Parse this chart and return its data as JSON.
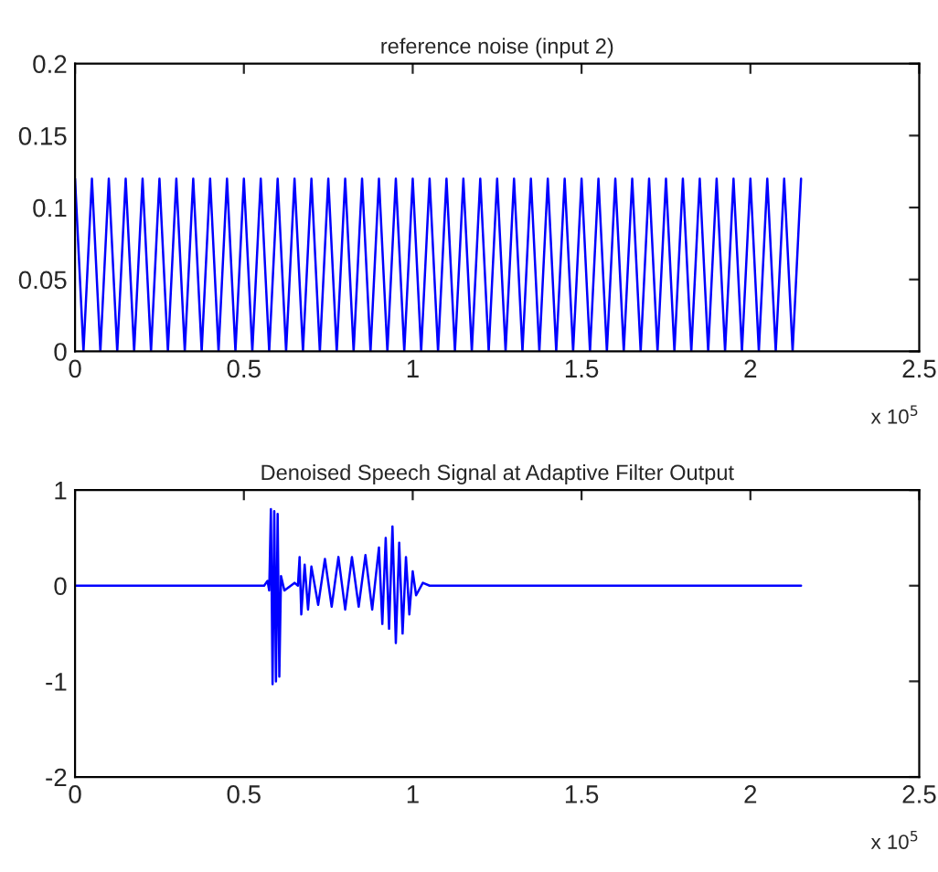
{
  "chart_data": [
    {
      "type": "line",
      "title": "reference noise (input 2)",
      "annotations": [
        "x 10$^{5}$"
      ],
      "xlim": [
        0,
        2.5
      ],
      "xticks": [
        0,
        0.5,
        1,
        1.5,
        2,
        2.5
      ],
      "ylim": [
        0,
        0.2
      ],
      "yticks": [
        0,
        0.05,
        0.1,
        0.15,
        0.2
      ],
      "grid": false,
      "series": [
        {
          "color": "#0000ff",
          "x": [
            0,
            0.025,
            0.05,
            0.075,
            0.1,
            0.125,
            0.15,
            0.175,
            0.2,
            0.225,
            0.25,
            0.275,
            0.3,
            0.325,
            0.35,
            0.375,
            0.4,
            0.425,
            0.45,
            0.475,
            0.5,
            0.525,
            0.55,
            0.575,
            0.6,
            0.625,
            0.65,
            0.675,
            0.7,
            0.725,
            0.75,
            0.775,
            0.8,
            0.825,
            0.85,
            0.875,
            0.9,
            0.925,
            0.95,
            0.975,
            1,
            1.025,
            1.05,
            1.075,
            1.1,
            1.125,
            1.15,
            1.175,
            1.2,
            1.225,
            1.25,
            1.275,
            1.3,
            1.325,
            1.35,
            1.375,
            1.4,
            1.425,
            1.45,
            1.475,
            1.5,
            1.525,
            1.55,
            1.575,
            1.6,
            1.625,
            1.65,
            1.675,
            1.7,
            1.725,
            1.75,
            1.775,
            1.8,
            1.825,
            1.85,
            1.875,
            1.9,
            1.925,
            1.95,
            1.975,
            2,
            2.025,
            2.05,
            2.075,
            2.1,
            2.125,
            2.15
          ],
          "values": [
            0.12,
            0,
            0.12,
            0,
            0.12,
            0,
            0.12,
            0,
            0.12,
            0,
            0.12,
            0,
            0.12,
            0,
            0.12,
            0,
            0.12,
            0,
            0.12,
            0,
            0.12,
            0,
            0.12,
            0,
            0.12,
            0,
            0.12,
            0,
            0.12,
            0,
            0.12,
            0,
            0.12,
            0,
            0.12,
            0,
            0.12,
            0,
            0.12,
            0,
            0.12,
            0,
            0.12,
            0,
            0.12,
            0,
            0.12,
            0,
            0.12,
            0,
            0.12,
            0,
            0.12,
            0,
            0.12,
            0,
            0.12,
            0,
            0.12,
            0,
            0.12,
            0,
            0.12,
            0,
            0.12,
            0,
            0.12,
            0,
            0.12,
            0,
            0.12,
            0,
            0.12,
            0,
            0.12,
            0,
            0.12,
            0,
            0.12,
            0,
            0.12,
            0,
            0.12,
            0,
            0.12,
            0,
            0.12
          ]
        }
      ]
    },
    {
      "type": "line",
      "title": "Denoised Speech Signal at Adaptive Filter Output",
      "annotations": [
        "x 10$^{5}$"
      ],
      "xlim": [
        0,
        2.5
      ],
      "xticks": [
        0,
        0.5,
        1,
        1.5,
        2,
        2.5
      ],
      "ylim": [
        -2,
        1
      ],
      "yticks": [
        -2,
        -1,
        0,
        1
      ],
      "grid": false,
      "series": [
        {
          "color": "#0000ff",
          "x": [
            0,
            0.5,
            0.56,
            0.57,
            0.575,
            0.58,
            0.585,
            0.59,
            0.595,
            0.6,
            0.605,
            0.61,
            0.62,
            0.65,
            0.66,
            0.665,
            0.67,
            0.68,
            0.69,
            0.7,
            0.72,
            0.74,
            0.76,
            0.78,
            0.8,
            0.82,
            0.84,
            0.86,
            0.88,
            0.9,
            0.91,
            0.92,
            0.93,
            0.94,
            0.95,
            0.96,
            0.97,
            0.98,
            0.99,
            1.0,
            1.01,
            1.03,
            1.05,
            2.15
          ],
          "values": [
            0,
            0,
            0,
            0.05,
            -0.05,
            0.8,
            -1.03,
            0.78,
            -1.0,
            0.75,
            -0.95,
            0.1,
            -0.05,
            0.03,
            0,
            0.3,
            -0.3,
            0.22,
            -0.25,
            0.2,
            -0.2,
            0.28,
            -0.22,
            0.3,
            -0.25,
            0.3,
            -0.22,
            0.32,
            -0.25,
            0.4,
            -0.4,
            0.5,
            -0.45,
            0.62,
            -0.6,
            0.45,
            -0.5,
            0.3,
            -0.3,
            0.15,
            -0.1,
            0.03,
            0,
            0
          ]
        }
      ]
    }
  ]
}
